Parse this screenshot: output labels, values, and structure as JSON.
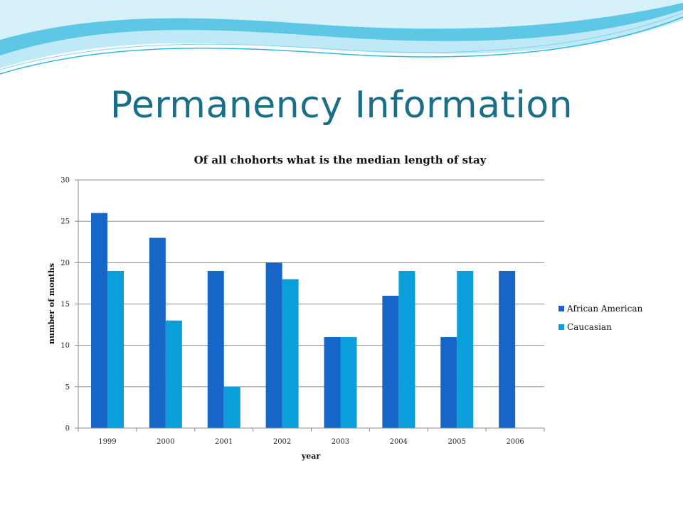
{
  "slide": {
    "title": "Permanency Information"
  },
  "colors": {
    "title": "#1a6e87",
    "series_1": "#1566c7",
    "series_2": "#0a9fda",
    "grid": "#8c8c8c",
    "wave_dark": "#2fb9dd",
    "wave_light": "#bfe9f6"
  },
  "chart_data": {
    "type": "bar",
    "title": "Of all chohorts what is the median length of stay",
    "xlabel": "year",
    "ylabel": "number of months",
    "categories": [
      "1999",
      "2000",
      "2001",
      "2002",
      "2003",
      "2004",
      "2005",
      "2006"
    ],
    "series": [
      {
        "name": "African American",
        "values": [
          26,
          23,
          19,
          20,
          11,
          16,
          11,
          19
        ]
      },
      {
        "name": "Caucasian",
        "values": [
          19,
          13,
          5,
          18,
          11,
          19,
          19,
          null
        ]
      }
    ],
    "ylim": [
      0,
      30
    ],
    "yticks": [
      "0",
      "5",
      "10",
      "15",
      "20",
      "25",
      "30"
    ],
    "grid": true,
    "legend_position": "right"
  }
}
